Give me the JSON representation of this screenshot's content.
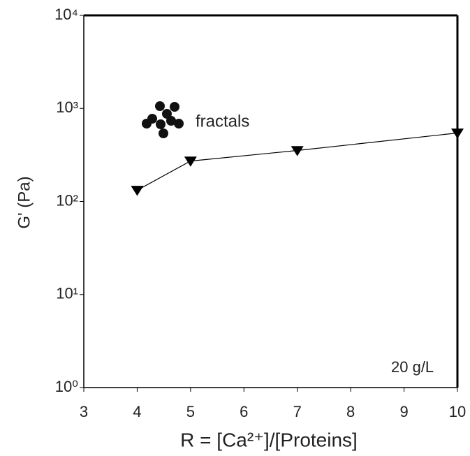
{
  "chart_data": {
    "type": "line",
    "x_label": "R = [Ca²⁺]/[Proteins]",
    "y_label": "G' (Pa)",
    "annotations": [
      "fractals",
      "20 g/L"
    ],
    "x": [
      4,
      5,
      7,
      10
    ],
    "values": [
      132,
      272,
      353,
      544
    ],
    "color": "#000000",
    "marker": "triangle-down",
    "xlim": [
      3,
      10
    ],
    "xticks": [
      3,
      4,
      5,
      6,
      7,
      8,
      9,
      10
    ],
    "ylim": [
      1,
      10000
    ],
    "y_scale": "log",
    "yticks": [
      {
        "value": 1,
        "label": "10⁰"
      },
      {
        "value": 10,
        "label": "10¹"
      },
      {
        "value": 100,
        "label": "10²"
      },
      {
        "value": 1000,
        "label": "10³"
      },
      {
        "value": 10000,
        "label": "10⁴"
      }
    ],
    "grid": false
  }
}
